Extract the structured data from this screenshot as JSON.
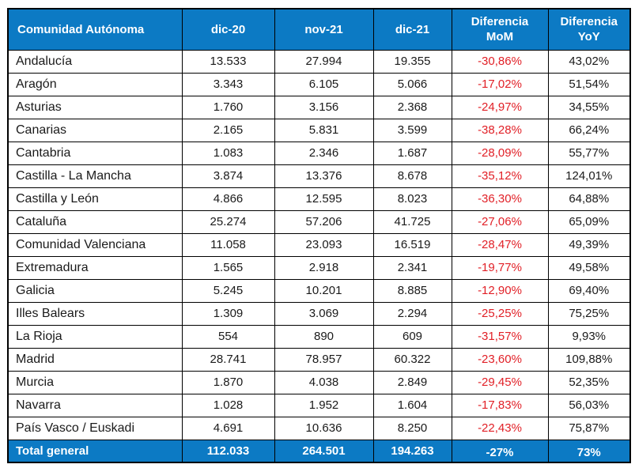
{
  "colors": {
    "header_bg": "#0c7ac4",
    "negative_value": "#e11f26",
    "border": "#000000",
    "body_text": "#1a1a1a",
    "header_text": "#ffffff"
  },
  "chart_data": {
    "type": "table",
    "title": "",
    "columns": [
      "Comunidad Autónoma",
      "dic-20",
      "nov-21",
      "dic-21",
      "Diferencia\nMoM",
      "Diferencia\nYoY"
    ],
    "rows": [
      {
        "name": "Andalucía",
        "dic20": "13.533",
        "nov21": "27.994",
        "dic21": "19.355",
        "mom": "-30,86%",
        "yoy": "43,02%"
      },
      {
        "name": "Aragón",
        "dic20": "3.343",
        "nov21": "6.105",
        "dic21": "5.066",
        "mom": "-17,02%",
        "yoy": "51,54%"
      },
      {
        "name": "Asturias",
        "dic20": "1.760",
        "nov21": "3.156",
        "dic21": "2.368",
        "mom": "-24,97%",
        "yoy": "34,55%"
      },
      {
        "name": "Canarias",
        "dic20": "2.165",
        "nov21": "5.831",
        "dic21": "3.599",
        "mom": "-38,28%",
        "yoy": "66,24%"
      },
      {
        "name": "Cantabria",
        "dic20": "1.083",
        "nov21": "2.346",
        "dic21": "1.687",
        "mom": "-28,09%",
        "yoy": "55,77%"
      },
      {
        "name": "Castilla - La Mancha",
        "dic20": "3.874",
        "nov21": "13.376",
        "dic21": "8.678",
        "mom": "-35,12%",
        "yoy": "124,01%"
      },
      {
        "name": "Castilla y León",
        "dic20": "4.866",
        "nov21": "12.595",
        "dic21": "8.023",
        "mom": "-36,30%",
        "yoy": "64,88%"
      },
      {
        "name": "Cataluña",
        "dic20": "25.274",
        "nov21": "57.206",
        "dic21": "41.725",
        "mom": "-27,06%",
        "yoy": "65,09%"
      },
      {
        "name": "Comunidad Valenciana",
        "dic20": "11.058",
        "nov21": "23.093",
        "dic21": "16.519",
        "mom": "-28,47%",
        "yoy": "49,39%"
      },
      {
        "name": "Extremadura",
        "dic20": "1.565",
        "nov21": "2.918",
        "dic21": "2.341",
        "mom": "-19,77%",
        "yoy": "49,58%"
      },
      {
        "name": "Galicia",
        "dic20": "5.245",
        "nov21": "10.201",
        "dic21": "8.885",
        "mom": "-12,90%",
        "yoy": "69,40%"
      },
      {
        "name": "Illes Balears",
        "dic20": "1.309",
        "nov21": "3.069",
        "dic21": "2.294",
        "mom": "-25,25%",
        "yoy": "75,25%"
      },
      {
        "name": "La Rioja",
        "dic20": "554",
        "nov21": "890",
        "dic21": "609",
        "mom": "-31,57%",
        "yoy": "9,93%"
      },
      {
        "name": "Madrid",
        "dic20": "28.741",
        "nov21": "78.957",
        "dic21": "60.322",
        "mom": "-23,60%",
        "yoy": "109,88%"
      },
      {
        "name": "Murcia",
        "dic20": "1.870",
        "nov21": "4.038",
        "dic21": "2.849",
        "mom": "-29,45%",
        "yoy": "52,35%"
      },
      {
        "name": "Navarra",
        "dic20": "1.028",
        "nov21": "1.952",
        "dic21": "1.604",
        "mom": "-17,83%",
        "yoy": "56,03%"
      },
      {
        "name": "País Vasco / Euskadi",
        "dic20": "4.691",
        "nov21": "10.636",
        "dic21": "8.250",
        "mom": "-22,43%",
        "yoy": "75,87%"
      }
    ],
    "total": {
      "name": "Total general",
      "dic20": "112.033",
      "nov21": "264.501",
      "dic21": "194.263",
      "mom": "-27%",
      "yoy": "73%"
    }
  }
}
